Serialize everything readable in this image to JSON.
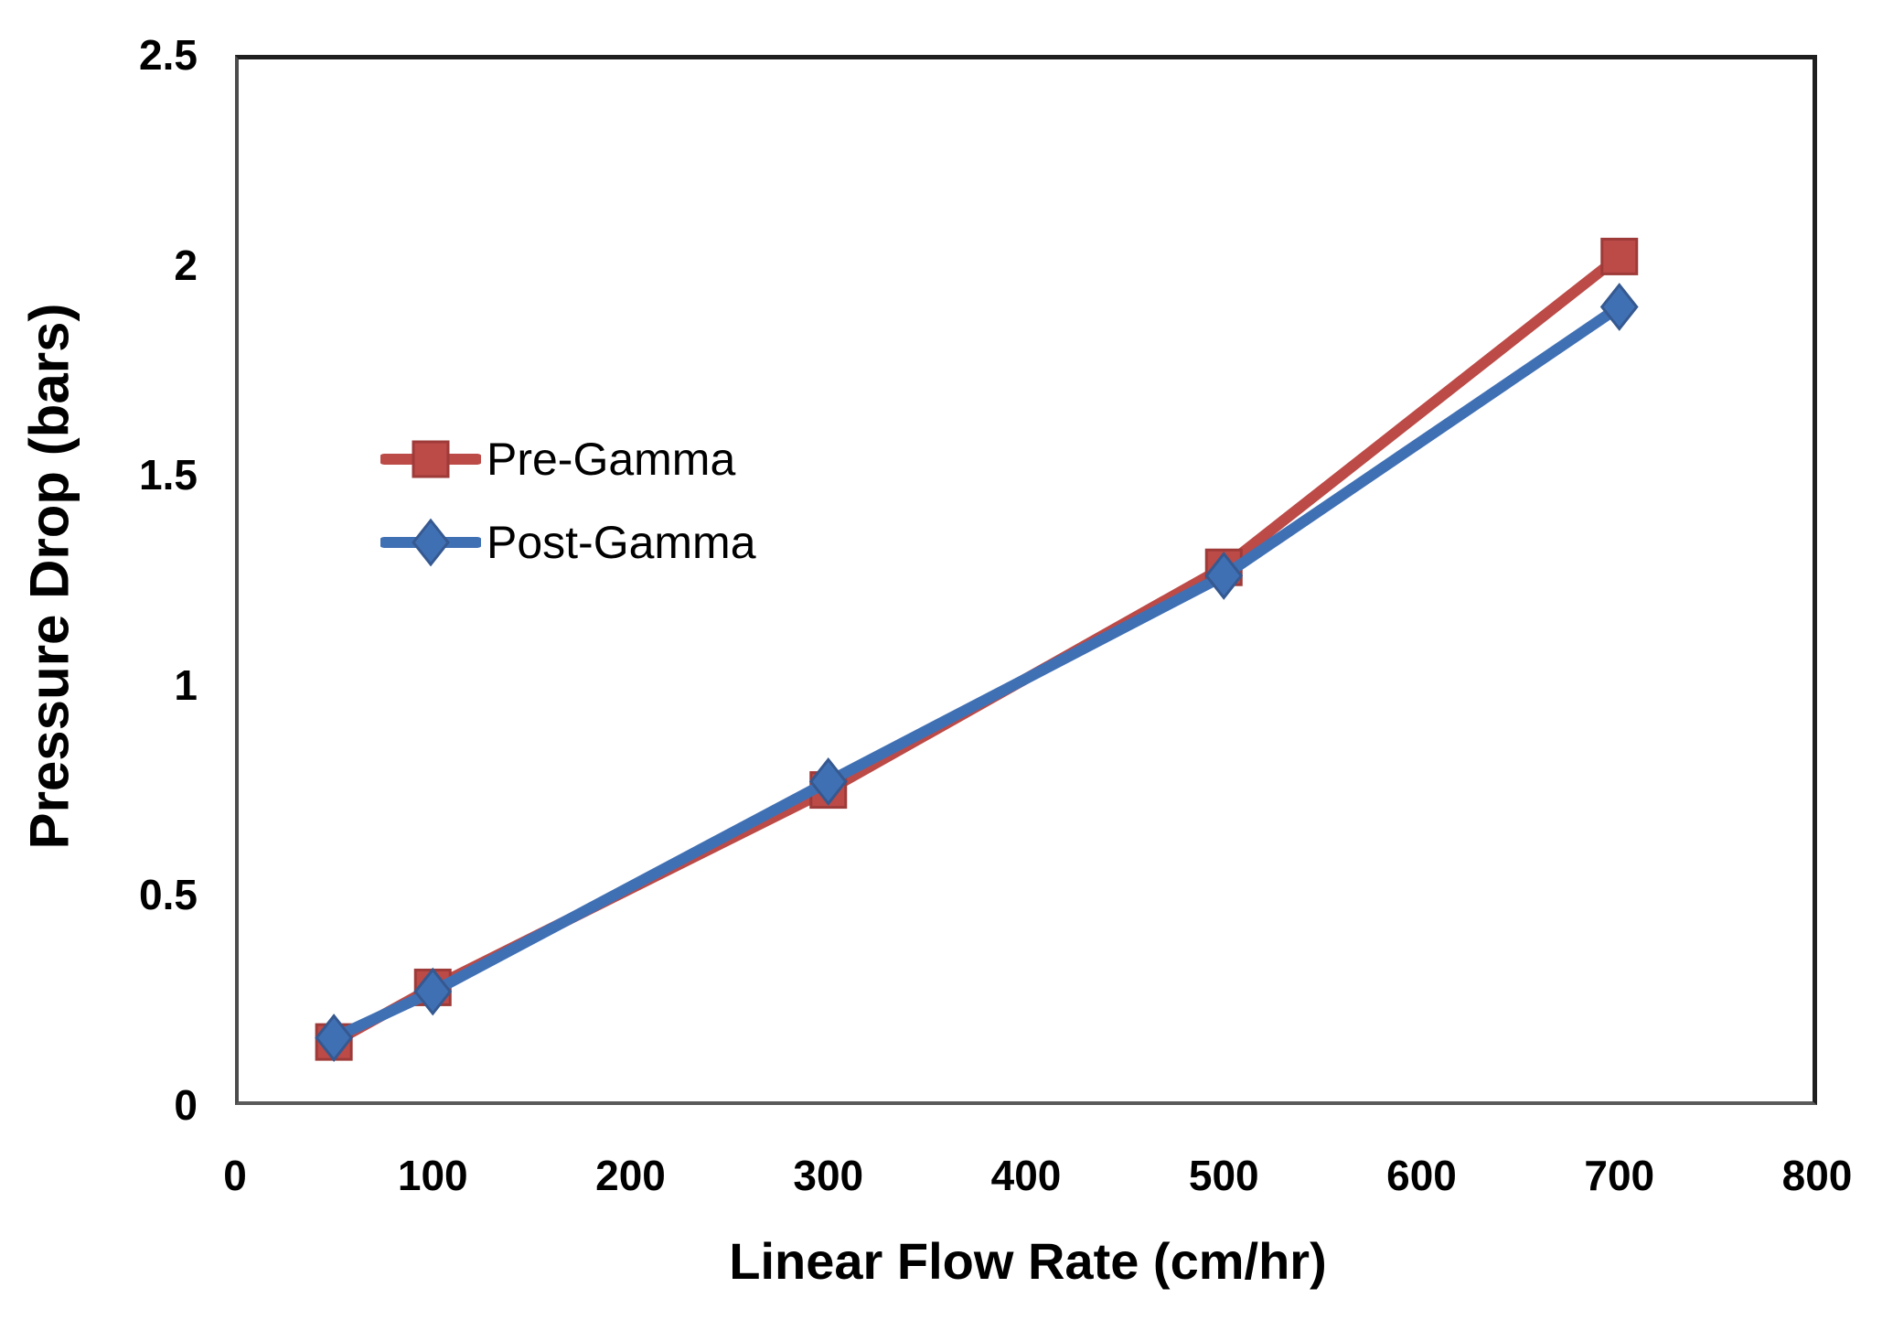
{
  "chart_data": {
    "type": "line",
    "xlabel": "Linear Flow Rate (cm/hr)",
    "ylabel": "Pressure Drop (bars)",
    "x": [
      50,
      100,
      300,
      500,
      700
    ],
    "series": [
      {
        "name": "Pre-Gamma",
        "marker": "square",
        "color": "#bc4a47",
        "edge_color": "#9e3b39",
        "values": [
          0.15,
          0.28,
          0.75,
          1.28,
          2.02
        ]
      },
      {
        "name": "Post-Gamma",
        "marker": "diamond",
        "color": "#4070b4",
        "edge_color": "#355990",
        "values": [
          0.16,
          0.27,
          0.77,
          1.26,
          1.9
        ]
      }
    ],
    "xlim": [
      0,
      800
    ],
    "ylim": [
      0,
      2.5
    ],
    "xticks": [
      0,
      100,
      200,
      300,
      400,
      500,
      600,
      700,
      800
    ],
    "xtick_labels": [
      "0",
      "100",
      "200",
      "300",
      "400",
      "500",
      "600",
      "700",
      "800"
    ],
    "yticks": [
      0,
      0.5,
      1,
      1.5,
      2,
      2.5
    ],
    "ytick_labels": [
      "0",
      "0.5",
      "1",
      "1.5",
      "2",
      "2.5"
    ],
    "grid": false,
    "legend_position": "inside-upper-left",
    "background": "#ffffff",
    "line_width": 12
  }
}
